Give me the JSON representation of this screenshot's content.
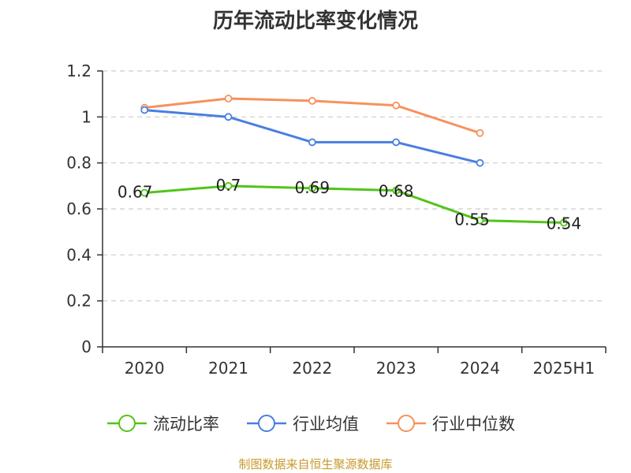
{
  "title": "历年流动比率变化情况",
  "footer": "制图数据来自恒生聚源数据库",
  "colors": {
    "current_ratio": "#52c41a",
    "industry_mean": "#4a7fe0",
    "industry_median": "#f7915c",
    "footer": "#c89a2c",
    "axis": "#333333",
    "grid": "#cccccc"
  },
  "chart_data": {
    "type": "line",
    "title": "历年流动比率变化情况",
    "xlabel": "",
    "ylabel": "",
    "categories": [
      "2020",
      "2021",
      "2022",
      "2023",
      "2024",
      "2025H1"
    ],
    "ylim": [
      0,
      1.2
    ],
    "yticks": [
      "0",
      "0.2",
      "0.4",
      "0.6",
      "0.8",
      "1",
      "1.2"
    ],
    "grid": "horizontal dashed",
    "legend_position": "bottom",
    "series": [
      {
        "name": "流动比率",
        "key": "current_ratio",
        "values": [
          0.67,
          0.7,
          0.69,
          0.68,
          0.55,
          0.54
        ],
        "labels": [
          "0.67",
          "0.7",
          "0.69",
          "0.68",
          "0.55",
          "0.54"
        ]
      },
      {
        "name": "行业均值",
        "key": "industry_mean",
        "values": [
          1.03,
          1.0,
          0.89,
          0.89,
          0.8,
          null
        ]
      },
      {
        "name": "行业中位数",
        "key": "industry_median",
        "values": [
          1.04,
          1.08,
          1.07,
          1.05,
          0.93,
          null
        ]
      }
    ]
  }
}
